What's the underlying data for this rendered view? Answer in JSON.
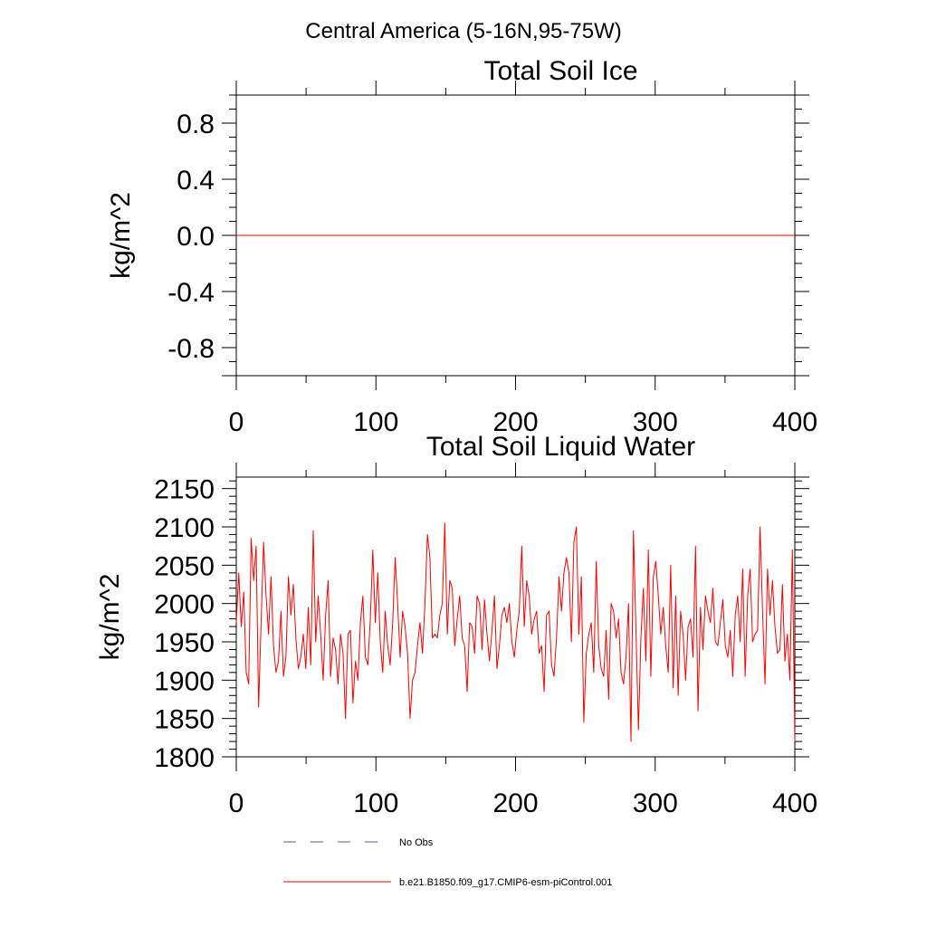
{
  "figure": {
    "suptitle": "Central America (5-16N,95-75W)"
  },
  "colors": {
    "series": "#ff0000",
    "obs": "#5a5a8c",
    "axis": "#000000",
    "background": "#ffffff"
  },
  "legend": {
    "obs_label": "No Obs",
    "model_label": "b.e21.B1850.f09_g17.CMIP6-esm-piControl.001"
  },
  "chart_data": [
    {
      "type": "line",
      "title": "Total Soil Ice",
      "xlabel": "",
      "ylabel": "kg/m^2",
      "xlim": [
        0,
        400
      ],
      "ylim": [
        -1,
        1
      ],
      "xticks": [
        0,
        100,
        200,
        300,
        400
      ],
      "xtick_labels": [
        "0",
        "100",
        "200",
        "300",
        "400"
      ],
      "yticks": [
        -0.8,
        -0.4,
        0.0,
        0.4,
        0.8
      ],
      "ytick_labels": [
        "-0.8",
        "-0.4",
        "0.0",
        "0.4",
        "0.8"
      ],
      "y_minor_step": 0.1,
      "x_minor_step": 50,
      "series": [
        {
          "name": "b.e21.B1850.f09_g17.CMIP6-esm-piControl.001",
          "x_start": 0,
          "x_end": 400,
          "values": [
            0,
            0
          ]
        }
      ]
    },
    {
      "type": "line",
      "title": "Total Soil Liquid Water",
      "xlabel": "",
      "ylabel": "kg/m^2",
      "xlim": [
        0,
        400
      ],
      "ylim": [
        1800,
        2165
      ],
      "xticks": [
        0,
        100,
        200,
        300,
        400
      ],
      "xtick_labels": [
        "0",
        "100",
        "200",
        "300",
        "400"
      ],
      "yticks": [
        1800,
        1850,
        1900,
        1950,
        2000,
        2050,
        2100,
        2150
      ],
      "ytick_labels": [
        "1800",
        "1850",
        "1900",
        "1950",
        "2000",
        "2050",
        "2100",
        "2150"
      ],
      "y_minor_step": 10,
      "x_minor_step": 50,
      "series": [
        {
          "name": "b.e21.B1850.f09_g17.CMIP6-esm-piControl.001",
          "x_start": 0,
          "x_end": 400,
          "values": [
            1975,
            2040,
            1970,
            2015,
            1910,
            1895,
            2085,
            2030,
            2075,
            1865,
            1975,
            2080,
            2010,
            1960,
            2035,
            1945,
            1910,
            1925,
            1990,
            1905,
            1930,
            2035,
            1985,
            2025,
            1955,
            1915,
            1930,
            1960,
            1915,
            1995,
            1920,
            2095,
            1950,
            2010,
            1960,
            1900,
            1985,
            2030,
            1905,
            1955,
            1940,
            1895,
            1960,
            1935,
            1850,
            1960,
            1965,
            1870,
            1925,
            1900,
            1975,
            2010,
            1930,
            1920,
            1980,
            2070,
            1975,
            2040,
            1950,
            1910,
            1990,
            1945,
            1920,
            1975,
            2060,
            2000,
            1930,
            1990,
            1970,
            1935,
            1850,
            1900,
            1910,
            1945,
            1975,
            1935,
            2000,
            2090,
            2060,
            1955,
            1960,
            1955,
            1985,
            2000,
            2105,
            1960,
            2030,
            2020,
            1945,
            1980,
            2010,
            1955,
            1945,
            1885,
            1975,
            1970,
            1935,
            2010,
            2000,
            1940,
            2005,
            1960,
            1925,
            1965,
            2010,
            1915,
            1945,
            1985,
            1995,
            1975,
            2000,
            1950,
            1930,
            1965,
            1990,
            2075,
            1970,
            2030,
            2010,
            1960,
            1980,
            1990,
            1935,
            1945,
            1885,
            1985,
            1990,
            1920,
            1905,
            1955,
            2035,
            1990,
            2040,
            2060,
            2040,
            1950,
            2080,
            2100,
            1960,
            2035,
            1845,
            1935,
            1960,
            1975,
            1910,
            2055,
            1945,
            1915,
            1905,
            1965,
            1875,
            2000,
            1990,
            1955,
            1980,
            1910,
            1895,
            1930,
            2000,
            1820,
            2095,
            1965,
            1835,
            1955,
            2020,
            1925,
            2070,
            1905,
            2035,
            2055,
            2010,
            1960,
            1995,
            1945,
            1910,
            2050,
            1890,
            2010,
            1880,
            1990,
            1960,
            1900,
            1970,
            1980,
            1930,
            2075,
            1860,
            1995,
            1940,
            2010,
            1990,
            1975,
            2020,
            1950,
            1945,
            1975,
            2005,
            1945,
            1930,
            1965,
            1905,
            1985,
            2010,
            1950,
            2045,
            1905,
            2010,
            2045,
            1950,
            1960,
            1965,
            2100,
            1990,
            1895,
            2045,
            1985,
            2030,
            1970,
            1935,
            1940,
            2025,
            1925,
            1960,
            1900,
            2070,
            1820
          ]
        }
      ]
    }
  ]
}
